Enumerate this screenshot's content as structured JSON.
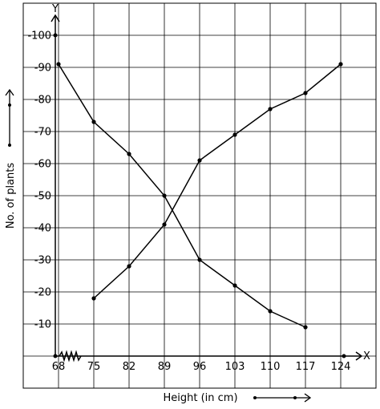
{
  "chart_data": {
    "type": "line",
    "xlabel": "Height (in cm)",
    "ylabel": "No. of plants",
    "x_axis_letter": "X",
    "y_axis_letter": "Y",
    "x_ticks": [
      "68",
      "75",
      "82",
      "89",
      "96",
      "103",
      "110",
      "117",
      "124"
    ],
    "y_ticks": [
      "10",
      "20",
      "30",
      "40",
      "50",
      "60",
      "70",
      "80",
      "90",
      "100"
    ],
    "xlim": [
      61,
      131
    ],
    "ylim": [
      -10,
      110
    ],
    "grid": true,
    "series": [
      {
        "x": [
          68,
          75,
          82,
          89,
          96,
          103,
          110,
          117
        ],
        "y": [
          91,
          73,
          63,
          50,
          30,
          22,
          14,
          9
        ]
      },
      {
        "x": [
          75,
          82,
          89,
          96,
          103,
          110,
          117,
          124
        ],
        "y": [
          18,
          28,
          41,
          61,
          69,
          77,
          82,
          91
        ]
      }
    ],
    "axis_break": true,
    "colors": {
      "line": "#000000",
      "grid": "#000000"
    }
  }
}
